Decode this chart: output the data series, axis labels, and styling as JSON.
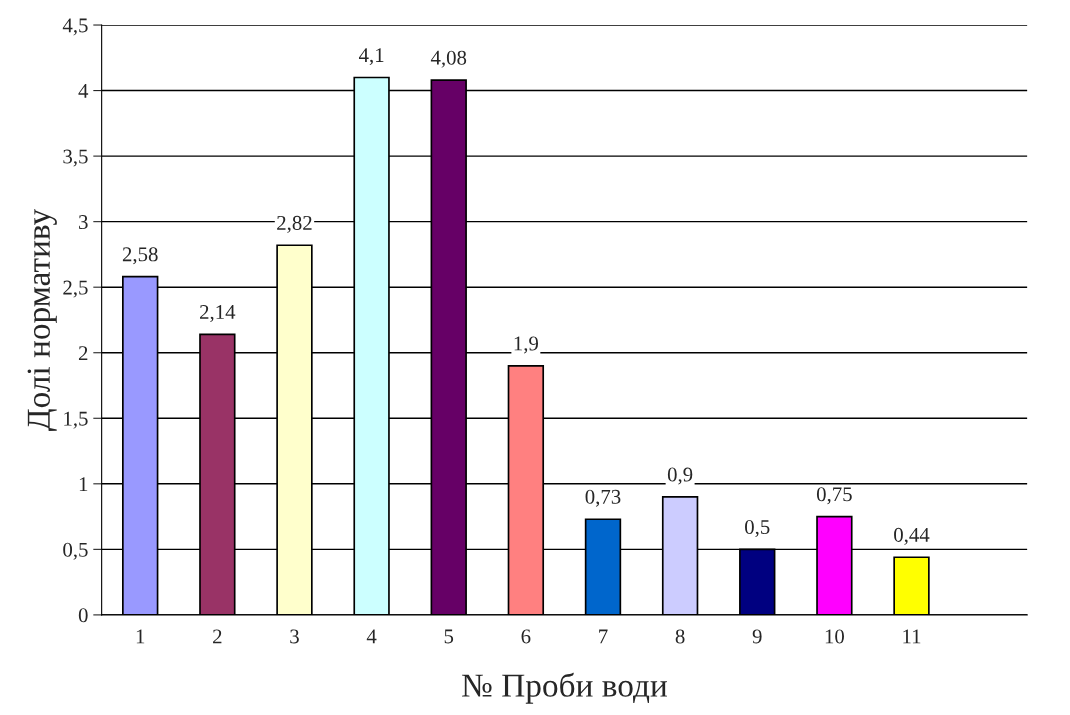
{
  "chart_data": {
    "type": "bar",
    "xlabel": "№ Проби води",
    "ylabel": "Долі нормативу",
    "categories": [
      "1",
      "2",
      "3",
      "4",
      "5",
      "6",
      "7",
      "8",
      "9",
      "10",
      "11",
      null
    ],
    "values": [
      2.58,
      2.14,
      2.82,
      4.1,
      4.08,
      1.9,
      0.73,
      0.9,
      0.5,
      0.75,
      0.44,
      null
    ],
    "colors": [
      "#9999ff",
      "#993366",
      "#ffffcc",
      "#ccffff",
      "#660066",
      "#ff8080",
      "#0066cc",
      "#ccccff",
      "#000080",
      "#ff00ff",
      "#ffff00",
      "#ffffff"
    ],
    "value_labels": [
      "2,58",
      "2,14",
      "2,82",
      "4,1",
      "4,08",
      "1,9",
      "0,73",
      "0,9",
      "0,5",
      "0,75",
      "0,44",
      null
    ],
    "ylim": [
      0,
      4.5
    ],
    "yticks": [
      0,
      {
        "value": 0.5,
        "label": "0,5"
      },
      1,
      {
        "value": 1.5,
        "label": "1,5"
      },
      2,
      {
        "value": 2.5,
        "label": "2,5"
      },
      3,
      {
        "value": 3.5,
        "label": "3,5"
      },
      4,
      {
        "value": 4.5,
        "label": "4,5"
      }
    ],
    "grid": "y",
    "legend": false
  }
}
